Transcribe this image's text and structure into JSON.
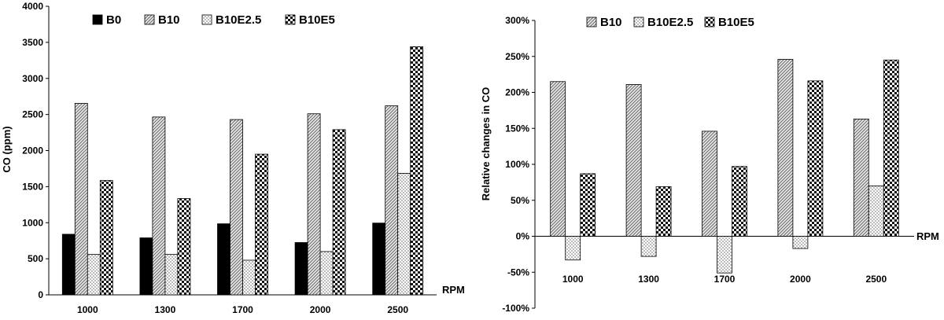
{
  "chart_data": [
    {
      "type": "bar",
      "title": "",
      "xlabel": "RPM",
      "ylabel": "CO (ppm)",
      "ylim": [
        0,
        4000
      ],
      "yticks": [
        "0",
        "500",
        "1000",
        "1500",
        "2000",
        "2500",
        "3000",
        "3500",
        "4000"
      ],
      "categories": [
        "1000",
        "1300",
        "1700",
        "2000",
        "2500"
      ],
      "legend_position": "top",
      "series": [
        {
          "name": "B0",
          "pattern": "solid",
          "values": [
            840,
            790,
            985,
            725,
            995
          ]
        },
        {
          "name": "B10",
          "pattern": "diagonal",
          "values": [
            2655,
            2465,
            2430,
            2510,
            2620
          ]
        },
        {
          "name": "B10E2.5",
          "pattern": "dots",
          "values": [
            560,
            560,
            480,
            600,
            1685
          ]
        },
        {
          "name": "B10E5",
          "pattern": "checker",
          "values": [
            1585,
            1335,
            1950,
            2290,
            3440
          ]
        }
      ]
    },
    {
      "type": "bar",
      "title": "",
      "xlabel": "RPM",
      "ylabel": "Relative changes in CO",
      "ylim": [
        -100,
        300
      ],
      "yticks": [
        "-100%",
        "-50%",
        "0%",
        "50%",
        "100%",
        "150%",
        "200%",
        "250%",
        "300%"
      ],
      "categories": [
        "1000",
        "1300",
        "1700",
        "2000",
        "2500"
      ],
      "legend_position": "top",
      "series": [
        {
          "name": "B10",
          "pattern": "diagonal",
          "values": [
            215,
            211,
            146,
            246,
            163
          ]
        },
        {
          "name": "B10E2.5",
          "pattern": "dots",
          "values": [
            -33,
            -28,
            -51,
            -17,
            70
          ]
        },
        {
          "name": "B10E5",
          "pattern": "checker",
          "values": [
            87,
            69,
            97,
            216,
            245
          ]
        }
      ]
    }
  ]
}
